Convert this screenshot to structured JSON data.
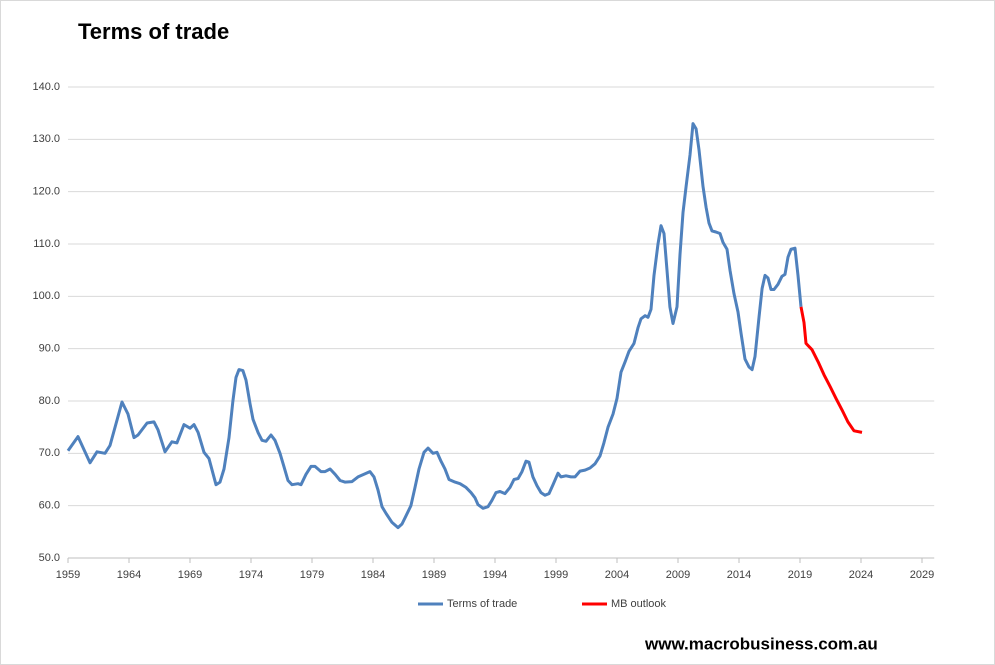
{
  "chart_data": {
    "type": "line",
    "title": "Terms of trade",
    "footer": "www.macrobusiness.com.au",
    "xlim": [
      1959,
      2030
    ],
    "xticks": [
      1959,
      1964,
      1969,
      1974,
      1979,
      1984,
      1989,
      1994,
      1999,
      2004,
      2009,
      2014,
      2019,
      2024,
      2029
    ],
    "ylim": [
      50,
      140
    ],
    "yticks": [
      {
        "value": 50,
        "label": "50.0"
      },
      {
        "value": 60,
        "label": "60.0"
      },
      {
        "value": 70,
        "label": "70.0"
      },
      {
        "value": 80,
        "label": "80.0"
      },
      {
        "value": 90,
        "label": "90.0"
      },
      {
        "value": 100,
        "label": "100.0"
      },
      {
        "value": 110,
        "label": "110.0"
      },
      {
        "value": 120,
        "label": "120.0"
      },
      {
        "value": 130,
        "label": "130.0"
      },
      {
        "value": 140,
        "label": "140.0"
      }
    ],
    "grid": true,
    "legend": "bottom",
    "series": [
      {
        "name": "Terms of trade",
        "color": "#4f81bd",
        "x": [
          1959.0,
          1959.82,
          1960.8,
          1961.38,
          1962.03,
          1962.44,
          1963.43,
          1963.92,
          1964.41,
          1964.74,
          1965.48,
          1966.05,
          1966.38,
          1966.95,
          1967.52,
          1967.93,
          1968.51,
          1969.0,
          1969.33,
          1969.66,
          1970.15,
          1970.56,
          1971.13,
          1971.46,
          1971.79,
          1972.2,
          1972.52,
          1972.77,
          1973.02,
          1973.34,
          1973.59,
          1973.92,
          1974.16,
          1974.57,
          1974.9,
          1975.23,
          1975.64,
          1975.97,
          1976.38,
          1976.7,
          1977.03,
          1977.36,
          1977.85,
          1978.1,
          1978.51,
          1978.92,
          1979.25,
          1979.74,
          1980.07,
          1980.48,
          1980.89,
          1981.3,
          1981.7,
          1982.28,
          1982.77,
          1983.26,
          1983.75,
          1984.08,
          1984.41,
          1984.74,
          1985.07,
          1985.56,
          1986.05,
          1986.38,
          1986.7,
          1987.11,
          1987.44,
          1987.77,
          1988.18,
          1988.51,
          1988.92,
          1989.25,
          1989.57,
          1989.9,
          1990.23,
          1990.72,
          1991.13,
          1991.62,
          1992.03,
          1992.36,
          1992.61,
          1993.02,
          1993.43,
          1993.75,
          1994.08,
          1994.41,
          1994.82,
          1995.23,
          1995.56,
          1995.89,
          1996.21,
          1996.54,
          1996.79,
          1997.11,
          1997.44,
          1997.77,
          1998.1,
          1998.43,
          1998.75,
          1999.16,
          1999.41,
          1999.82,
          2000.23,
          2000.56,
          2000.97,
          2001.38,
          2001.79,
          2002.2,
          2002.61,
          2002.93,
          2003.26,
          2003.67,
          2004.0,
          2004.33,
          2004.66,
          2004.98,
          2005.39,
          2005.72,
          2005.97,
          2006.3,
          2006.54,
          2006.79,
          2007.03,
          2007.36,
          2007.61,
          2007.85,
          2008.1,
          2008.34,
          2008.59,
          2008.92,
          2009.16,
          2009.41,
          2009.66,
          2009.98,
          2010.23,
          2010.48,
          2010.72,
          2011.05,
          2011.3,
          2011.54,
          2011.79,
          2012.11,
          2012.44,
          2012.69,
          2013.02,
          2013.26,
          2013.59,
          2013.92,
          2014.16,
          2014.49,
          2014.82,
          2015.07,
          2015.31,
          2015.64,
          2015.89,
          2016.13,
          2016.38,
          2016.62,
          2016.87,
          2017.2,
          2017.52,
          2017.77,
          2018.02,
          2018.26,
          2018.59,
          2018.84,
          2019.08
        ],
        "values": [
          70.5,
          73.2,
          68.2,
          70.3,
          70,
          71.5,
          79.8,
          77.5,
          73,
          73.5,
          75.8,
          76,
          74.5,
          70.3,
          72.2,
          72,
          75.5,
          74.8,
          75.5,
          74,
          70.2,
          69,
          64,
          64.5,
          67,
          73,
          80,
          84.5,
          86,
          85.8,
          84,
          79.5,
          76.5,
          74,
          72.5,
          72.3,
          73.5,
          72.5,
          70,
          67.5,
          64.8,
          64,
          64.2,
          64,
          66,
          67.5,
          67.5,
          66.5,
          66.5,
          67,
          66,
          64.8,
          64.5,
          64.6,
          65.5,
          66,
          66.5,
          65.5,
          63,
          59.8,
          58.5,
          56.8,
          55.8,
          56.5,
          58,
          60,
          63.5,
          67,
          70.2,
          71,
          70,
          70.2,
          68.5,
          67,
          65,
          64.5,
          64.2,
          63.5,
          62.5,
          61.5,
          60.2,
          59.5,
          59.8,
          61,
          62.5,
          62.7,
          62.3,
          63.5,
          65,
          65.2,
          66.5,
          68.5,
          68.3,
          65.5,
          63.8,
          62.5,
          62,
          62.3,
          64,
          66.2,
          65.5,
          65.7,
          65.5,
          65.5,
          66.6,
          66.8,
          67.2,
          68,
          69.5,
          72,
          75,
          77.5,
          80.5,
          85.5,
          87.5,
          89.5,
          91,
          94,
          95.7,
          96.3,
          96,
          97.5,
          104,
          110,
          113.5,
          112,
          105,
          98,
          94.8,
          98,
          108,
          116,
          121,
          127,
          133,
          132,
          128,
          121,
          117,
          114,
          112.5,
          112.3,
          112,
          110.3,
          109,
          105,
          100.5,
          97,
          93,
          88,
          86.5,
          86,
          88.5,
          96,
          101.5,
          104,
          103.5,
          101.3,
          101.3,
          102.3,
          103.8,
          104.2,
          107.5,
          109,
          109.2,
          104,
          98
        ]
      },
      {
        "name": "MB outlook",
        "color": "#ff0000",
        "x": [
          2019.08,
          2019.33,
          2019.49,
          2019.98,
          2020.48,
          2020.97,
          2021.46,
          2021.95,
          2022.44,
          2022.93,
          2023.43,
          2024.08
        ],
        "values": [
          98,
          95,
          91,
          89.8,
          87.5,
          85,
          82.8,
          80.5,
          78.3,
          76,
          74.3,
          74
        ]
      }
    ]
  }
}
